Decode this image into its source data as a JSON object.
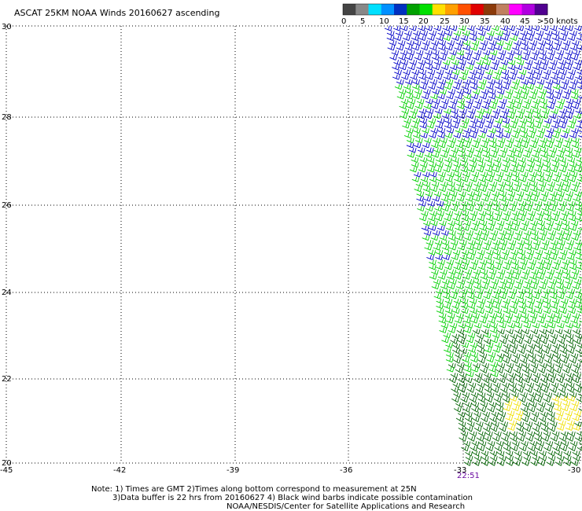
{
  "title": "ASCAT 25KM NOAA Winds 20160627 ascending",
  "scale": {
    "labels": [
      "0",
      "5",
      "10",
      "15",
      "20",
      "25",
      "30",
      "35",
      "40",
      "45",
      ">50 knots"
    ],
    "colors": [
      "#444444",
      "#888888",
      "#00e0ff",
      "#0090ff",
      "#0030c0",
      "#00a000",
      "#00e000",
      "#ffe000",
      "#ffa000",
      "#ff5000",
      "#e00000",
      "#8b3a0a",
      "#c08060",
      "#ff00ff",
      "#b000e0",
      "#500090"
    ]
  },
  "axes": {
    "x_ticks": [
      "-45",
      "-42",
      "-39",
      "-36",
      "-33",
      "-30"
    ],
    "y_ticks": [
      "30",
      "28",
      "26",
      "24",
      "22",
      "20"
    ],
    "lon_range": [
      -45,
      -30
    ],
    "lat_range": [
      20,
      30
    ],
    "grid": true
  },
  "time_label": "22:51",
  "notes": [
    "Note: 1) Times are GMT 2)Times along bottom correspond to measurement at 25N",
    "3)Data buffer is 22 hrs from 20160627 4) Black wind barbs indicate possible contamination",
    "NOAA/NESDIS/Center for Satellite Applications and Research"
  ],
  "barb_colors": {
    "blue": "#0000c8",
    "green": "#00d000",
    "dark_green": "#006400",
    "yellow": "#f0e000"
  }
}
